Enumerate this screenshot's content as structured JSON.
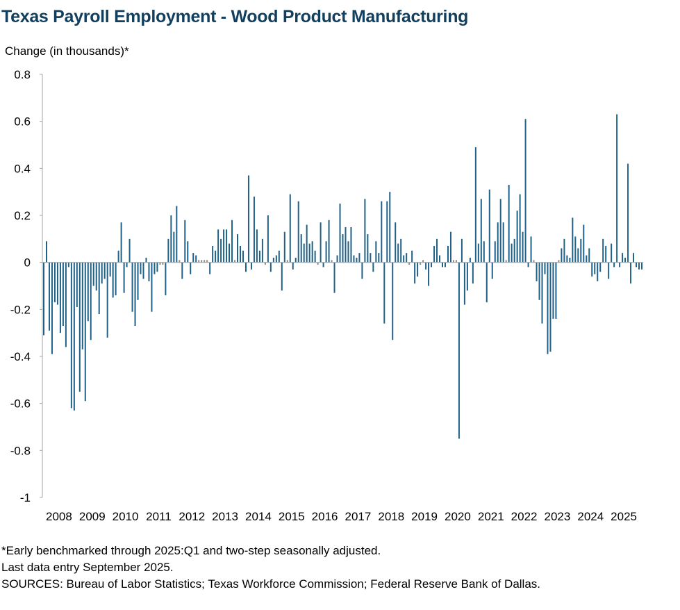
{
  "chart_data": {
    "type": "bar",
    "title": "Texas Payroll Employment - Wood Product Manufacturing",
    "ylabel": "Change (in thousands)*",
    "xlabel": "",
    "ylim": [
      -1,
      0.8
    ],
    "yticks": [
      "0.8",
      "0.6",
      "0.4",
      "0.2",
      "0",
      "-0.2",
      "-0.4",
      "-0.6",
      "-0.8",
      "-1"
    ],
    "ytick_values": [
      0.8,
      0.6,
      0.4,
      0.2,
      0,
      -0.2,
      -0.4,
      -0.6,
      -0.8,
      -1
    ],
    "xticks": [
      "2008",
      "2009",
      "2010",
      "2011",
      "2012",
      "2013",
      "2014",
      "2015",
      "2016",
      "2017",
      "2018",
      "2019",
      "2020",
      "2021",
      "2022",
      "2023",
      "2024",
      "2025"
    ],
    "period": "Monthly, January 2008 - September 2025",
    "bar_color": "#1f6087",
    "series": [
      {
        "name": "Monthly change",
        "values": [
          -0.31,
          0.09,
          -0.29,
          -0.39,
          -0.17,
          -0.18,
          -0.3,
          -0.27,
          -0.36,
          -0.02,
          -0.62,
          -0.63,
          -0.19,
          -0.55,
          -0.37,
          -0.59,
          -0.25,
          -0.33,
          -0.1,
          -0.12,
          -0.22,
          -0.09,
          -0.07,
          -0.32,
          -0.06,
          -0.15,
          -0.14,
          0.05,
          0.17,
          -0.13,
          -0.02,
          0.1,
          -0.21,
          -0.27,
          -0.16,
          -0.05,
          -0.07,
          0.02,
          -0.08,
          -0.21,
          -0.05,
          -0.04,
          -0.01,
          -0.01,
          -0.14,
          0.1,
          0.2,
          0.13,
          0.24,
          0.01,
          -0.07,
          0.18,
          0.09,
          -0.05,
          0.04,
          0.03,
          0.01,
          0.01,
          0.01,
          0.01,
          -0.05,
          0.07,
          0.05,
          0.14,
          0.1,
          0.14,
          0.14,
          0.08,
          0.18,
          0.01,
          0.12,
          0.07,
          0.05,
          -0.04,
          0.37,
          -0.03,
          0.28,
          0.14,
          0.05,
          0.1,
          -0.01,
          0.2,
          -0.04,
          0.02,
          0.03,
          0.05,
          -0.12,
          0.13,
          0.01,
          0.29,
          -0.03,
          0.02,
          0.26,
          0.12,
          0.08,
          0.16,
          0.08,
          0.09,
          0.05,
          -0.01,
          0.17,
          -0.02,
          0.09,
          0.18,
          0.01,
          -0.13,
          0.03,
          0.25,
          0.12,
          0.15,
          0.09,
          0.15,
          0.03,
          0.02,
          0.04,
          -0.07,
          0.27,
          0.12,
          0.04,
          -0.04,
          0.09,
          0.04,
          0.26,
          -0.26,
          0.26,
          0.3,
          -0.33,
          0.17,
          0.08,
          0.1,
          0.03,
          0.04,
          -0.01,
          0.05,
          -0.09,
          -0.06,
          -0.01,
          0.01,
          -0.03,
          -0.1,
          -0.02,
          0.07,
          0.1,
          0.03,
          -0.02,
          -0.02,
          0.07,
          0.13,
          0.01,
          0.01,
          -0.75,
          0.1,
          -0.18,
          -0.12,
          0.02,
          -0.09,
          0.49,
          0.08,
          0.27,
          0.09,
          -0.17,
          0.31,
          -0.07,
          0.09,
          0.17,
          0.27,
          0.17,
          0.01,
          0.33,
          0.08,
          0.1,
          0.22,
          0.29,
          0.13,
          0.61,
          -0.02,
          0.11,
          0.01,
          -0.08,
          -0.16,
          -0.26,
          -0.05,
          -0.39,
          -0.38,
          -0.24,
          -0.24,
          0.01,
          0.06,
          0.1,
          0.03,
          0.02,
          0.19,
          0.11,
          0.06,
          0.1,
          0.16,
          0.03,
          0.06,
          -0.06,
          -0.05,
          -0.08,
          -0.04,
          0.1,
          0.07,
          -0.07,
          0.08,
          -0.02,
          0.63,
          -0.02,
          0.04,
          0.02,
          0.42,
          -0.09,
          0.04,
          -0.02,
          -0.03,
          -0.03
        ]
      }
    ]
  },
  "footnotes": [
    "*Early benchmarked through 2025:Q1 and two-step seasonally adjusted.",
    "Last data entry September 2025.",
    "SOURCES: Bureau of Labor Statistics; Texas Workforce Commission; Federal Reserve Bank of Dallas."
  ]
}
